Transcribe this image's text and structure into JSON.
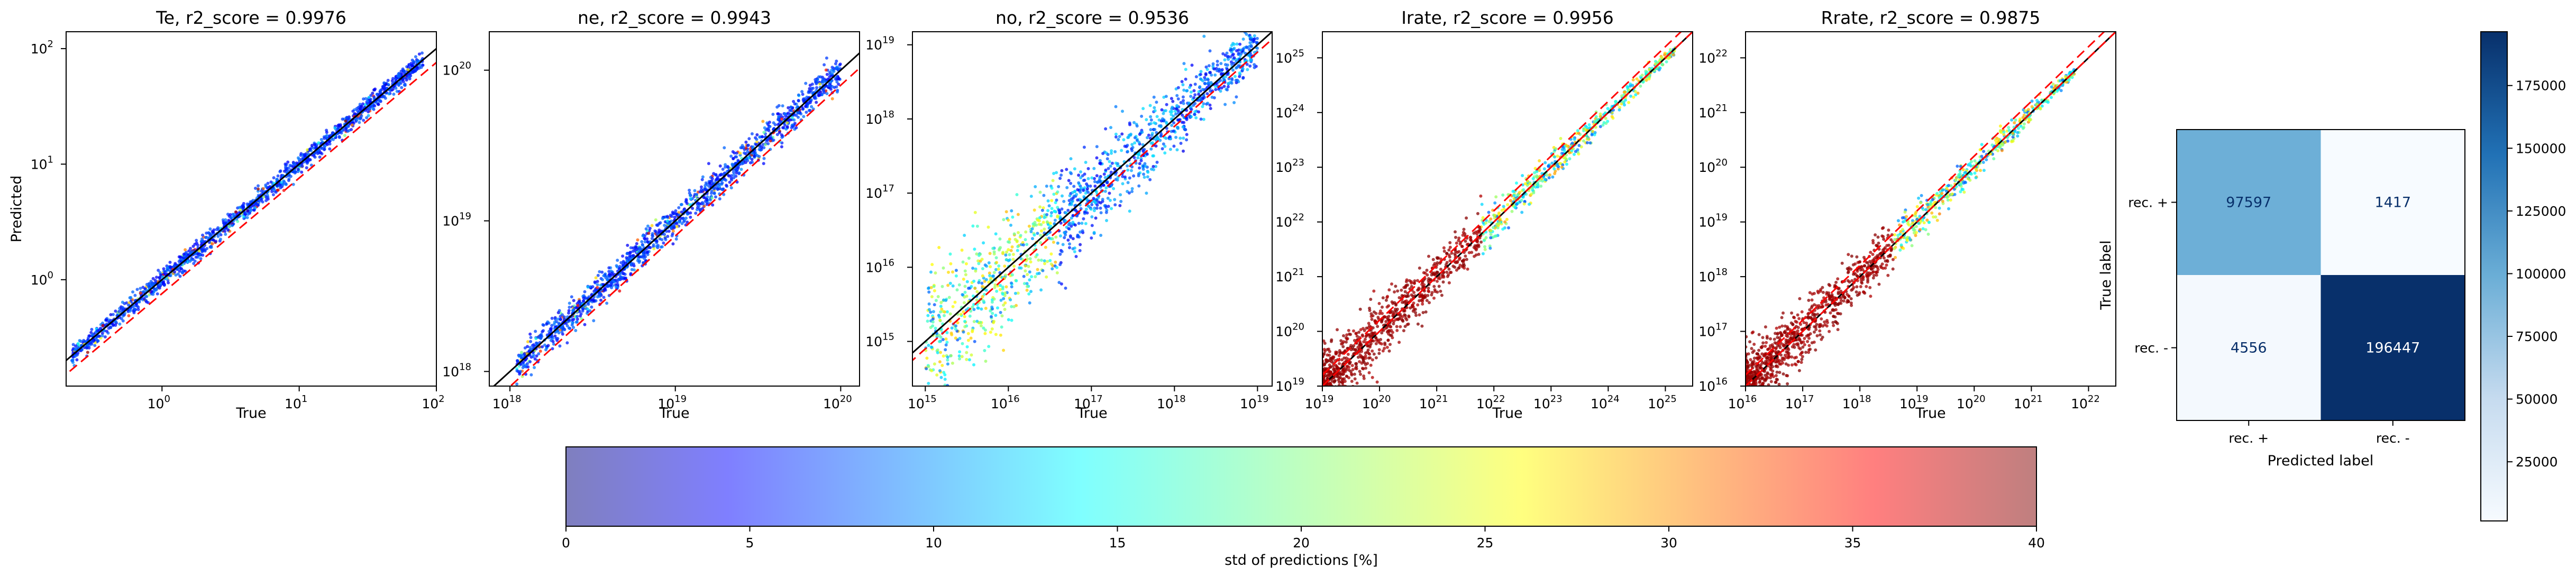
{
  "chart_data": [
    {
      "type": "scatter",
      "title": "Te, r2_score = 0.9976",
      "xlabel": "True",
      "ylabel": "Predicted",
      "scale": "log",
      "xlim": [
        0.2,
        100
      ],
      "ylim": [
        0.12,
        140
      ],
      "x_ticks": [
        {
          "v": 1,
          "label": "10",
          "exp": "0"
        },
        {
          "v": 10,
          "label": "10",
          "exp": "1"
        },
        {
          "v": 100,
          "label": "10",
          "exp": "2"
        }
      ],
      "y_ticks": [
        {
          "v": 1,
          "label": "10",
          "exp": "0"
        },
        {
          "v": 10,
          "label": "10",
          "exp": "1"
        },
        {
          "v": 100,
          "label": "10",
          "exp": "2"
        }
      ],
      "data_range": [
        0.22,
        80
      ],
      "spread_dex": 0.04,
      "parity_offset": 0.12,
      "dominant_std": 8
    },
    {
      "type": "scatter",
      "title": "ne, r2_score = 0.9943",
      "xlabel": "True",
      "ylabel": "",
      "scale": "log",
      "xlim": [
        7.5e+17,
        1.3e+20
      ],
      "ylim": [
        8e+17,
        1.8e+20
      ],
      "x_ticks": [
        {
          "v": 1e+18,
          "label": "10",
          "exp": "18"
        },
        {
          "v": 1e+19,
          "label": "10",
          "exp": "19"
        },
        {
          "v": 1e+20,
          "label": "10",
          "exp": "20"
        }
      ],
      "y_ticks": [
        {
          "v": 1e+18,
          "label": "10",
          "exp": "18"
        },
        {
          "v": 1e+19,
          "label": "10",
          "exp": "19"
        },
        {
          "v": 1e+20,
          "label": "10",
          "exp": "20"
        }
      ],
      "data_range": [
        1.1e+18,
        1e+20
      ],
      "spread_dex": 0.05,
      "parity_offset": 0.1,
      "dominant_std": 7
    },
    {
      "type": "scatter",
      "title": "no, r2_score = 0.9536",
      "xlabel": "True",
      "ylabel": "",
      "scale": "log",
      "xlim": [
        700000000000000.0,
        1.5e+19
      ],
      "ylim": [
        250000000000000.0,
        1.5e+19
      ],
      "x_ticks": [
        {
          "v": 1000000000000000.0,
          "label": "10",
          "exp": "15"
        },
        {
          "v": 1e+16,
          "label": "10",
          "exp": "16"
        },
        {
          "v": 1e+17,
          "label": "10",
          "exp": "17"
        },
        {
          "v": 1e+18,
          "label": "10",
          "exp": "18"
        },
        {
          "v": 1e+19,
          "label": "10",
          "exp": "19"
        }
      ],
      "y_ticks": [
        {
          "v": 1000000000000000.0,
          "label": "10",
          "exp": "15"
        },
        {
          "v": 1e+16,
          "label": "10",
          "exp": "16"
        },
        {
          "v": 1e+17,
          "label": "10",
          "exp": "17"
        },
        {
          "v": 1e+18,
          "label": "10",
          "exp": "18"
        },
        {
          "v": 1e+19,
          "label": "10",
          "exp": "19"
        }
      ],
      "data_range": [
        1000000000000000.0,
        1e+19
      ],
      "spread_dex": 0.35,
      "parity_offset": 0.1,
      "dominant_std": 12
    },
    {
      "type": "scatter",
      "title": "Irate, r2_score = 0.9956",
      "xlabel": "True",
      "ylabel": "",
      "scale": "log",
      "xlim": [
        1e+19,
        3e+25
      ],
      "ylim": [
        1e+19,
        3e+25
      ],
      "x_ticks": [
        {
          "v": 1e+19,
          "label": "10",
          "exp": "19"
        },
        {
          "v": 1e+20,
          "label": "10",
          "exp": "20"
        },
        {
          "v": 1e+21,
          "label": "10",
          "exp": "21"
        },
        {
          "v": 1e+22,
          "label": "10",
          "exp": "22"
        },
        {
          "v": 1e+23,
          "label": "10",
          "exp": "23"
        },
        {
          "v": 1e+24,
          "label": "10",
          "exp": "24"
        },
        {
          "v": 1e+25,
          "label": "10",
          "exp": "25"
        }
      ],
      "y_ticks": [
        {
          "v": 1e+19,
          "label": "10",
          "exp": "19"
        },
        {
          "v": 1e+20,
          "label": "10",
          "exp": "20"
        },
        {
          "v": 1e+21,
          "label": "10",
          "exp": "21"
        },
        {
          "v": 1e+22,
          "label": "10",
          "exp": "22"
        },
        {
          "v": 1e+23,
          "label": "10",
          "exp": "23"
        },
        {
          "v": 1e+24,
          "label": "10",
          "exp": "24"
        },
        {
          "v": 1e+25,
          "label": "10",
          "exp": "25"
        }
      ],
      "data_range": [
        1e+19,
        1.5e+25
      ],
      "spread_dex": 0.3,
      "parity_offset": 0.0,
      "dominant_std": 40
    },
    {
      "type": "scatter",
      "title": "Rrate, r2_score = 0.9875",
      "xlabel": "True",
      "ylabel": "",
      "scale": "log",
      "xlim": [
        1e+16,
        3e+22
      ],
      "ylim": [
        1e+16,
        3e+22
      ],
      "x_ticks": [
        {
          "v": 1e+16,
          "label": "10",
          "exp": "16"
        },
        {
          "v": 1e+17,
          "label": "10",
          "exp": "17"
        },
        {
          "v": 1e+18,
          "label": "10",
          "exp": "18"
        },
        {
          "v": 1e+19,
          "label": "10",
          "exp": "19"
        },
        {
          "v": 1e+20,
          "label": "10",
          "exp": "20"
        },
        {
          "v": 1e+21,
          "label": "10",
          "exp": "21"
        },
        {
          "v": 1e+22,
          "label": "10",
          "exp": "22"
        }
      ],
      "y_ticks": [
        {
          "v": 1e+16,
          "label": "10",
          "exp": "16"
        },
        {
          "v": 1e+17,
          "label": "10",
          "exp": "17"
        },
        {
          "v": 1e+18,
          "label": "10",
          "exp": "18"
        },
        {
          "v": 1e+19,
          "label": "10",
          "exp": "19"
        },
        {
          "v": 1e+20,
          "label": "10",
          "exp": "20"
        },
        {
          "v": 1e+21,
          "label": "10",
          "exp": "21"
        },
        {
          "v": 1e+22,
          "label": "10",
          "exp": "22"
        }
      ],
      "data_range": [
        1e+16,
        6e+21
      ],
      "spread_dex": 0.3,
      "parity_offset": 0.0,
      "dominant_std": 40
    },
    {
      "type": "heatmap",
      "title": "",
      "xlabel": "Predicted label",
      "ylabel": "True label",
      "row_labels": [
        "rec. +",
        "rec. -"
      ],
      "col_labels": [
        "rec. +",
        "rec. -"
      ],
      "values": [
        [
          97597,
          1417
        ],
        [
          4556,
          196447
        ]
      ],
      "colorbar_ticks": [
        25000,
        50000,
        75000,
        100000,
        125000,
        150000,
        175000
      ],
      "colorbar_range": [
        1417,
        196447
      ],
      "colormap": "Blues"
    },
    {
      "type": "colorbar",
      "label": "std of predictions [%]",
      "range": [
        0,
        40
      ],
      "ticks": [
        0,
        5,
        10,
        15,
        20,
        25,
        30,
        35,
        40
      ],
      "colormap": "jet",
      "alpha": 0.5
    }
  ],
  "colors": {
    "parity_line": "#000000",
    "offset_line": "#ff0000",
    "cm_low": "#f7fbff",
    "cm_high": "#08306b"
  }
}
